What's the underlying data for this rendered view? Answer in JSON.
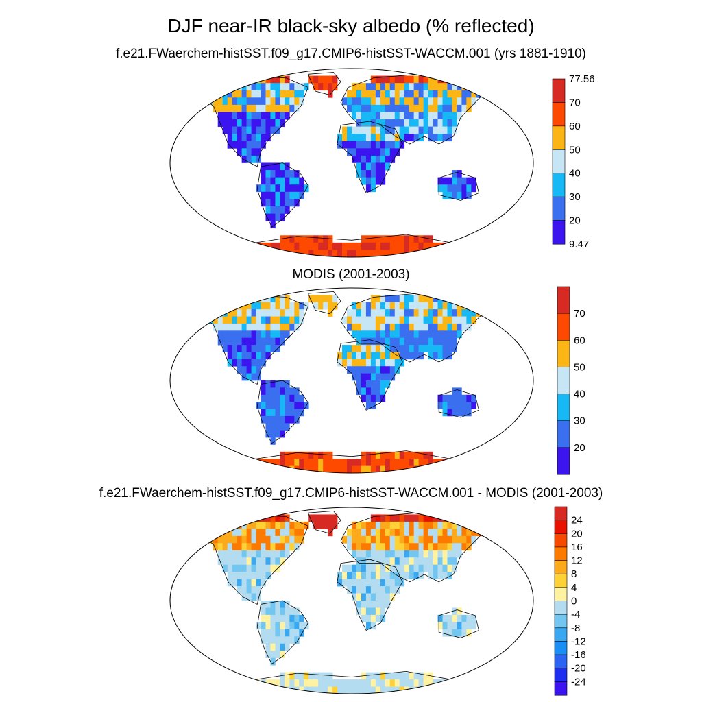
{
  "title": "DJF near-IR black-sky albedo (% reflected)",
  "panels": [
    {
      "title": "f.e21.FWaerchem-histSST.f09_g17.CMIP6-histSST-WACCM.001 (yrs 1881-1910)",
      "colorbar": {
        "colors": [
          "#3b14f0",
          "#3a6ff0",
          "#16b9f5",
          "#c7e6f5",
          "#fbb514",
          "#fd4a00",
          "#d72a23"
        ],
        "labels": [
          "9.47",
          "20",
          "30",
          "40",
          "50",
          "60",
          "70",
          "77.56"
        ]
      }
    },
    {
      "title": "MODIS (2001-2003)",
      "colorbar": {
        "colors": [
          "#3b14f0",
          "#3a6ff0",
          "#16b9f5",
          "#c7e6f5",
          "#fbb514",
          "#fd4a00",
          "#d72a23"
        ],
        "labels": [
          "",
          "20",
          "30",
          "40",
          "50",
          "60",
          "70",
          ""
        ]
      }
    },
    {
      "title": "f.e21.FWaerchem-histSST.f09_g17.CMIP6-histSST-WACCM.001 - MODIS (2001-2003)",
      "colorbar": {
        "colors": [
          "#3b14f0",
          "#1e2ef0",
          "#2a64f0",
          "#1b8ef5",
          "#3aa8f0",
          "#72c6f0",
          "#b3dcf0",
          "#fff2a0",
          "#fed236",
          "#fda91c",
          "#fd7a00",
          "#f54a00",
          "#e81200",
          "#d72a23"
        ],
        "labels": [
          "",
          "-24",
          "-20",
          "-16",
          "-12",
          "-8",
          "-4",
          "0",
          "4",
          "8",
          "12",
          "16",
          "20",
          "24",
          ""
        ]
      }
    }
  ]
}
